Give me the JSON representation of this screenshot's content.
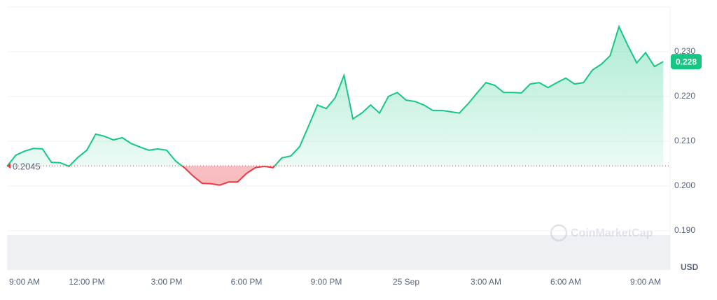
{
  "chart_data": {
    "type": "line",
    "categories": [
      "9:00 AM",
      null,
      null,
      null,
      null,
      null,
      null,
      null,
      null,
      "12:00 PM",
      null,
      null,
      null,
      null,
      null,
      null,
      null,
      null,
      "3:00 PM",
      null,
      null,
      null,
      null,
      null,
      null,
      null,
      null,
      "6:00 PM",
      null,
      null,
      null,
      null,
      null,
      null,
      null,
      null,
      "9:00 PM",
      null,
      null,
      null,
      null,
      null,
      null,
      null,
      null,
      "25 Sep",
      null,
      null,
      null,
      null,
      null,
      null,
      null,
      null,
      "3:00 AM",
      null,
      null,
      null,
      null,
      null,
      null,
      null,
      null,
      "6:00 AM",
      null,
      null,
      null,
      null,
      null,
      null,
      null,
      null,
      "9:00 AM",
      null,
      null
    ],
    "values": [
      0.2044,
      0.2069,
      0.2078,
      0.2084,
      0.2083,
      0.2053,
      0.2052,
      0.2044,
      0.2064,
      0.208,
      0.2116,
      0.2111,
      0.2103,
      0.2108,
      0.2095,
      0.2087,
      0.208,
      0.2083,
      0.208,
      0.2056,
      0.2041,
      0.2022,
      0.2006,
      0.2005,
      0.2002,
      0.2009,
      0.2009,
      0.2028,
      0.2041,
      0.2044,
      0.2041,
      0.2063,
      0.2067,
      0.2088,
      0.2134,
      0.2181,
      0.2173,
      0.2197,
      0.2247,
      0.215,
      0.2163,
      0.2181,
      0.2163,
      0.22,
      0.2209,
      0.2192,
      0.2189,
      0.2181,
      0.2169,
      0.2169,
      0.2166,
      0.2163,
      0.2184,
      0.2208,
      0.2231,
      0.2225,
      0.2209,
      0.2209,
      0.2208,
      0.2228,
      0.2231,
      0.222,
      0.2231,
      0.2241,
      0.2228,
      0.2231,
      0.2259,
      0.2272,
      0.2291,
      0.2356,
      0.2314,
      0.2275,
      0.2298,
      0.2267,
      0.2278
    ],
    "value_labels": [
      null,
      null,
      null,
      null,
      null,
      null,
      null,
      null,
      null,
      null,
      null,
      null,
      null,
      null,
      null,
      null,
      null,
      null,
      null,
      null,
      null,
      null,
      null,
      null,
      null,
      null,
      null,
      null,
      null,
      null,
      null,
      null,
      null,
      null,
      null,
      null,
      null,
      null,
      null,
      null,
      null,
      null,
      null,
      null,
      null,
      null,
      null,
      null,
      null,
      null,
      null,
      null,
      null,
      null,
      null,
      null,
      null,
      null,
      null,
      null,
      null,
      null,
      null,
      null,
      null,
      null,
      null,
      null,
      null,
      null,
      null,
      null,
      null,
      null,
      "0.228"
    ],
    "baseline": {
      "value": 0.2045,
      "label": "0.2045"
    },
    "up_color": "#16c784",
    "down_color": "#ea3943",
    "ylim": [
      0.18125,
      0.24
    ],
    "yticks": [
      {
        "value": 0.19,
        "label": "0.190"
      },
      {
        "value": 0.2,
        "label": "0.200"
      },
      {
        "value": 0.21,
        "label": "0.210"
      },
      {
        "value": 0.22,
        "label": "0.220"
      },
      {
        "value": 0.23,
        "label": "0.230"
      }
    ],
    "grid": true,
    "y_unit": "USD",
    "watermark": "CoinMarketCap"
  }
}
